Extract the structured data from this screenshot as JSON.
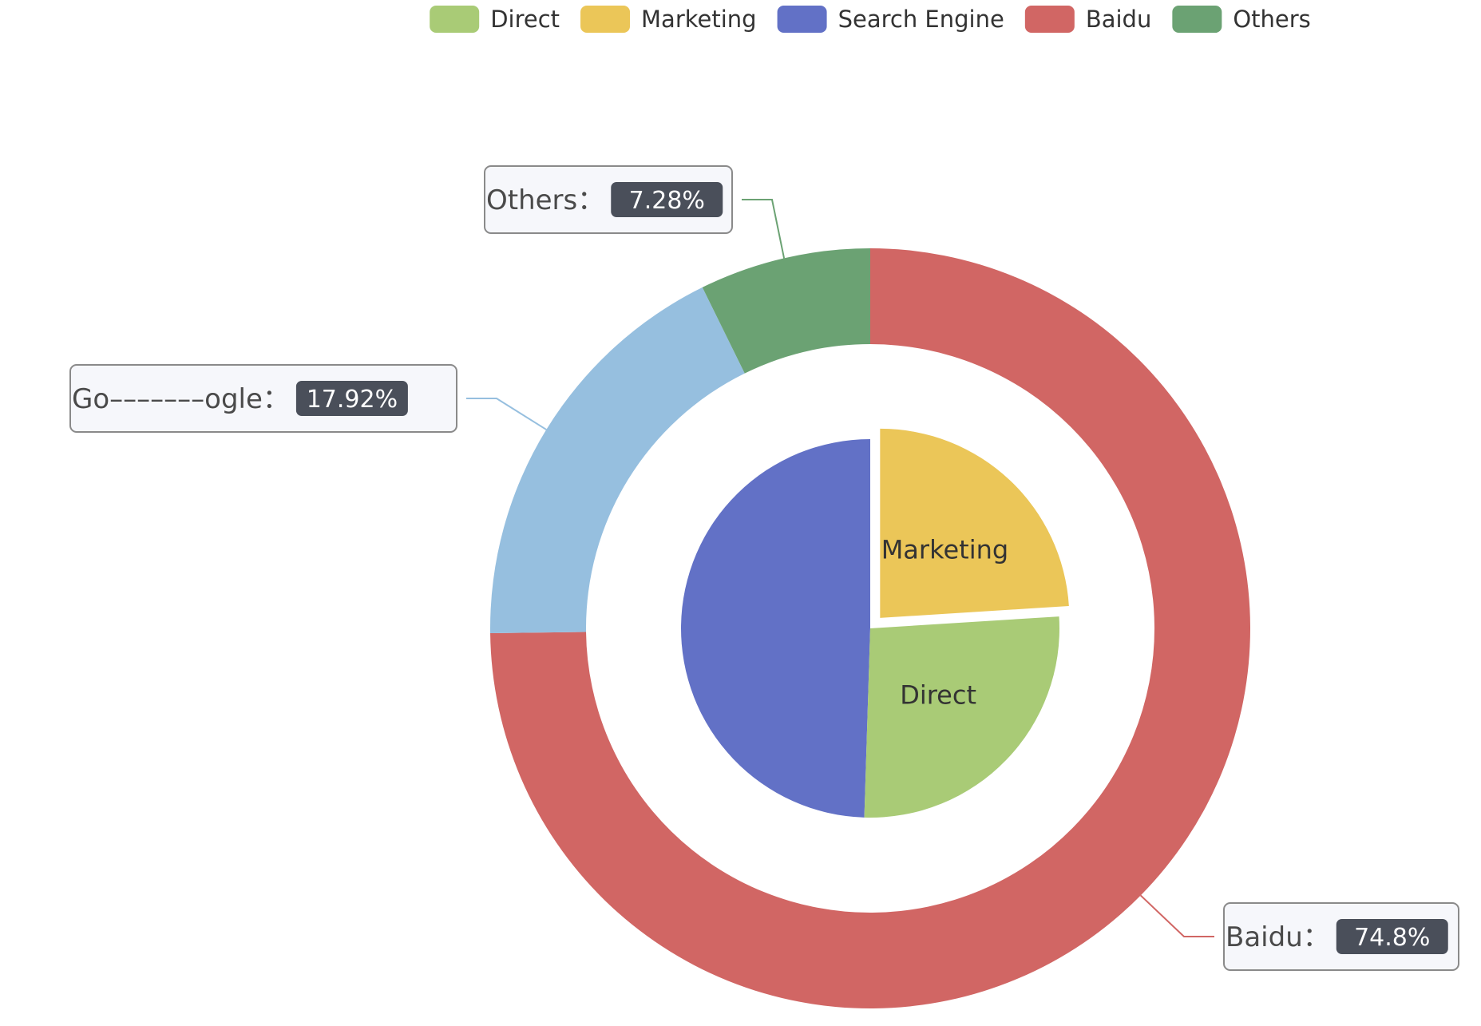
{
  "chart_data": {
    "type": "pie",
    "legend": {
      "position": "top-center",
      "items": [
        {
          "name": "Direct",
          "color": "#a9cb76"
        },
        {
          "name": "Marketing",
          "color": "#ebc658"
        },
        {
          "name": "Search Engine",
          "color": "#6271c6"
        },
        {
          "name": "Baidu",
          "color": "#d16664"
        },
        {
          "name": "Others",
          "color": "#6ba273"
        }
      ]
    },
    "inner_pie": {
      "selected": "Marketing",
      "slices": [
        {
          "name": "Search Engine",
          "label": "Search Engine",
          "percent": 49.5,
          "color": "#6271c6",
          "label_color": "#ffffff"
        },
        {
          "name": "Direct",
          "label": "Direct",
          "percent": 26.5,
          "color": "#a9cb76",
          "label_color": "#333333"
        },
        {
          "name": "Marketing",
          "label": "Marketing",
          "percent": 24.0,
          "color": "#ebc658",
          "label_color": "#333333"
        }
      ]
    },
    "outer_ring": {
      "slices": [
        {
          "name": "Baidu",
          "label": "Baidu：",
          "value_text": "74.8%",
          "percent": 74.8,
          "color": "#d16664"
        },
        {
          "name": "Google",
          "label": "Go–––––––ogle：",
          "value_text": "17.92%",
          "percent": 17.92,
          "color": "#96bfdf"
        },
        {
          "name": "Others",
          "label": "Others：",
          "value_text": "7.28%",
          "percent": 7.28,
          "color": "#6ba273"
        }
      ]
    }
  }
}
